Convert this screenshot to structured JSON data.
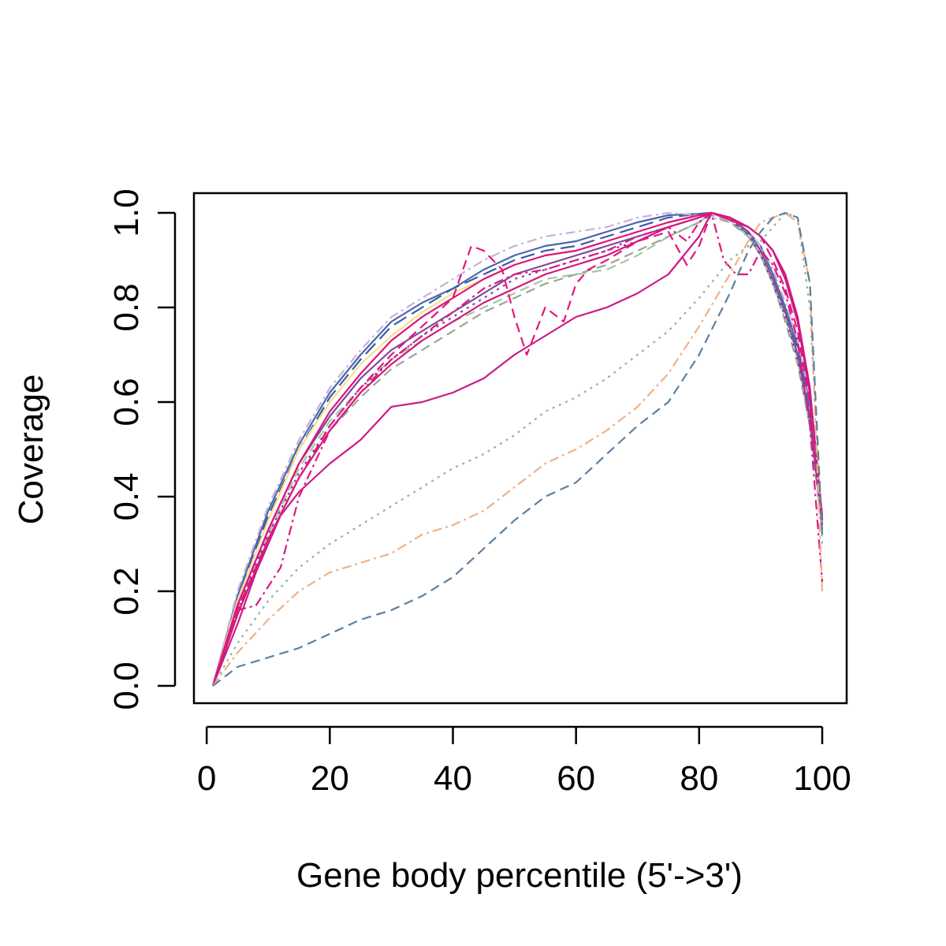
{
  "chart_data": {
    "type": "line",
    "title": "",
    "xlabel": "Gene body percentile (5'->3')",
    "ylabel": "Coverage",
    "xlim": [
      1,
      100
    ],
    "ylim": [
      0,
      1
    ],
    "xticks": [
      0,
      20,
      40,
      60,
      80,
      100
    ],
    "xtick_labels": [
      "0",
      "20",
      "40",
      "60",
      "80",
      "100"
    ],
    "yticks": [
      0,
      0.2,
      0.4,
      0.6,
      0.8,
      1
    ],
    "ytick_labels": [
      "0.0",
      "0.2",
      "0.4",
      "0.6",
      "0.8",
      "1.0"
    ],
    "grid": false,
    "legend": "none",
    "series": [
      {
        "color": "#4a66ac",
        "dash": "solid",
        "x": [
          1,
          5,
          10,
          15,
          20,
          25,
          30,
          35,
          40,
          45,
          50,
          55,
          60,
          65,
          70,
          75,
          80,
          82,
          85,
          88,
          90,
          92,
          94,
          96,
          98,
          100
        ],
        "y": [
          0,
          0.19,
          0.37,
          0.51,
          0.62,
          0.7,
          0.77,
          0.81,
          0.84,
          0.88,
          0.91,
          0.93,
          0.94,
          0.96,
          0.98,
          0.995,
          0.998,
          1.0,
          0.99,
          0.96,
          0.93,
          0.87,
          0.8,
          0.72,
          0.6,
          0.33
        ]
      },
      {
        "color": "#3b5ba5",
        "dash": "longdash",
        "x": [
          1,
          5,
          10,
          15,
          20,
          25,
          30,
          35,
          40,
          45,
          50,
          55,
          60,
          65,
          70,
          75,
          80,
          82,
          85,
          88,
          90,
          92,
          94,
          96,
          98,
          100
        ],
        "y": [
          0,
          0.18,
          0.36,
          0.5,
          0.61,
          0.69,
          0.76,
          0.8,
          0.84,
          0.87,
          0.9,
          0.92,
          0.93,
          0.95,
          0.97,
          0.99,
          0.998,
          1.0,
          0.985,
          0.955,
          0.92,
          0.86,
          0.79,
          0.71,
          0.58,
          0.35
        ]
      },
      {
        "color": "#c9b0d8",
        "dash": "dashdot",
        "x": [
          1,
          5,
          10,
          15,
          20,
          25,
          30,
          35,
          40,
          45,
          50,
          55,
          60,
          65,
          70,
          75,
          80,
          82,
          85,
          88,
          90,
          92,
          94,
          96,
          98,
          100
        ],
        "y": [
          0,
          0.2,
          0.38,
          0.52,
          0.63,
          0.71,
          0.78,
          0.82,
          0.86,
          0.9,
          0.93,
          0.95,
          0.96,
          0.97,
          0.99,
          1.0,
          0.995,
          0.99,
          0.98,
          0.96,
          0.93,
          0.88,
          0.81,
          0.73,
          0.61,
          0.36
        ]
      },
      {
        "color": "#f6e08c",
        "dash": "solid",
        "x": [
          1,
          5,
          10,
          15,
          20,
          25,
          30,
          35,
          40,
          45,
          50,
          55,
          60,
          65,
          70,
          75,
          80,
          82,
          85,
          88,
          90,
          92,
          94,
          96,
          98,
          100
        ],
        "y": [
          0,
          0.18,
          0.35,
          0.5,
          0.6,
          0.68,
          0.74,
          0.79,
          0.83,
          0.86,
          0.89,
          0.91,
          0.92,
          0.94,
          0.96,
          0.98,
          0.995,
          1.0,
          0.99,
          0.96,
          0.92,
          0.86,
          0.79,
          0.7,
          0.57,
          0.34
        ]
      },
      {
        "color": "#a3c99a",
        "dash": "dashed",
        "x": [
          1,
          5,
          10,
          15,
          20,
          25,
          30,
          35,
          40,
          45,
          50,
          55,
          60,
          65,
          70,
          75,
          80,
          82,
          85,
          88,
          90,
          92,
          94,
          96,
          98,
          100
        ],
        "y": [
          0,
          0.16,
          0.32,
          0.46,
          0.56,
          0.63,
          0.69,
          0.73,
          0.77,
          0.8,
          0.83,
          0.86,
          0.87,
          0.88,
          0.91,
          0.95,
          0.98,
          1.0,
          0.985,
          0.95,
          0.91,
          0.85,
          0.78,
          0.69,
          0.55,
          0.34
        ]
      },
      {
        "color": "#9aa39d",
        "dash": "dashed",
        "x": [
          1,
          5,
          10,
          15,
          20,
          25,
          30,
          35,
          40,
          45,
          50,
          55,
          60,
          65,
          70,
          75,
          80,
          82,
          85,
          88,
          90,
          92,
          94,
          96,
          98,
          100
        ],
        "y": [
          0,
          0.15,
          0.31,
          0.44,
          0.54,
          0.61,
          0.67,
          0.71,
          0.75,
          0.79,
          0.82,
          0.85,
          0.87,
          0.89,
          0.92,
          0.95,
          0.98,
          0.995,
          0.98,
          0.95,
          0.91,
          0.85,
          0.77,
          0.68,
          0.55,
          0.33
        ]
      },
      {
        "color": "#7a4a9c",
        "dash": "solid",
        "x": [
          1,
          5,
          10,
          15,
          20,
          25,
          30,
          35,
          40,
          45,
          50,
          55,
          60,
          65,
          70,
          75,
          80,
          82,
          85,
          88,
          90,
          92,
          94,
          96,
          98,
          100
        ],
        "y": [
          0,
          0.17,
          0.33,
          0.47,
          0.57,
          0.65,
          0.71,
          0.75,
          0.79,
          0.83,
          0.87,
          0.89,
          0.91,
          0.93,
          0.95,
          0.97,
          0.99,
          1.0,
          0.99,
          0.96,
          0.92,
          0.86,
          0.79,
          0.7,
          0.57,
          0.34
        ]
      },
      {
        "color": "#8a3aa0",
        "dash": "dotted",
        "x": [
          1,
          5,
          10,
          15,
          20,
          25,
          30,
          35,
          40,
          45,
          50,
          55,
          60,
          65,
          70,
          75,
          80,
          82,
          85,
          88,
          90,
          92,
          94,
          96,
          98,
          100
        ],
        "y": [
          0,
          0.16,
          0.32,
          0.45,
          0.55,
          0.63,
          0.69,
          0.74,
          0.78,
          0.82,
          0.86,
          0.88,
          0.9,
          0.92,
          0.94,
          0.97,
          0.99,
          1.0,
          0.985,
          0.955,
          0.91,
          0.85,
          0.78,
          0.69,
          0.56,
          0.33
        ]
      },
      {
        "color": "#e0127a",
        "dash": "solid",
        "x": [
          1,
          5,
          10,
          15,
          20,
          25,
          30,
          35,
          40,
          45,
          50,
          55,
          60,
          65,
          70,
          75,
          80,
          82,
          85,
          88,
          90,
          92,
          94,
          96,
          98,
          100
        ],
        "y": [
          0,
          0.17,
          0.33,
          0.47,
          0.58,
          0.66,
          0.73,
          0.78,
          0.82,
          0.86,
          0.89,
          0.91,
          0.92,
          0.94,
          0.96,
          0.98,
          0.995,
          1.0,
          0.99,
          0.97,
          0.95,
          0.92,
          0.86,
          0.77,
          0.62,
          0.36
        ]
      },
      {
        "color": "#d4157f",
        "dash": "solid",
        "x": [
          1,
          5,
          10,
          15,
          20,
          25,
          30,
          35,
          40,
          45,
          50,
          55,
          60,
          65,
          70,
          75,
          80,
          82,
          85,
          88,
          90,
          92,
          94,
          96,
          98,
          100
        ],
        "y": [
          0,
          0.15,
          0.31,
          0.44,
          0.54,
          0.62,
          0.68,
          0.73,
          0.77,
          0.81,
          0.84,
          0.87,
          0.89,
          0.91,
          0.94,
          0.97,
          0.99,
          1.0,
          0.99,
          0.97,
          0.95,
          0.92,
          0.87,
          0.78,
          0.63,
          0.35
        ]
      },
      {
        "color": "#cc1a86",
        "dash": "solid",
        "x": [
          1,
          5,
          8,
          12,
          15,
          20,
          25,
          30,
          35,
          40,
          45,
          50,
          55,
          60,
          65,
          70,
          75,
          80,
          82,
          85,
          88,
          90,
          92,
          94,
          96,
          98,
          100
        ],
        "y": [
          0,
          0.13,
          0.24,
          0.36,
          0.41,
          0.47,
          0.52,
          0.59,
          0.6,
          0.62,
          0.65,
          0.7,
          0.74,
          0.78,
          0.8,
          0.83,
          0.87,
          0.95,
          1.0,
          0.985,
          0.97,
          0.95,
          0.92,
          0.86,
          0.77,
          0.62,
          0.35
        ]
      },
      {
        "color": "#e2167c",
        "dash": "dashed",
        "x": [
          1,
          5,
          10,
          15,
          20,
          25,
          30,
          35,
          40,
          43,
          45,
          48,
          50,
          52,
          55,
          58,
          60,
          62,
          65,
          70,
          75,
          78,
          80,
          82,
          85,
          88,
          90,
          92,
          94,
          96,
          98,
          100
        ],
        "y": [
          0,
          0.16,
          0.31,
          0.44,
          0.55,
          0.63,
          0.7,
          0.76,
          0.82,
          0.93,
          0.92,
          0.88,
          0.78,
          0.7,
          0.8,
          0.77,
          0.85,
          0.88,
          0.9,
          0.94,
          0.96,
          0.89,
          0.93,
          1.0,
          0.985,
          0.97,
          0.95,
          0.9,
          0.84,
          0.75,
          0.6,
          0.34
        ]
      },
      {
        "color": "#dc1a7e",
        "dash": "dashdot",
        "x": [
          1,
          3,
          5,
          8,
          12,
          15,
          20,
          25,
          30,
          35,
          40,
          45,
          50,
          55,
          60,
          65,
          70,
          75,
          78,
          80,
          82,
          84,
          86,
          88,
          90,
          92,
          94,
          96,
          98,
          100
        ],
        "y": [
          0,
          0.08,
          0.16,
          0.17,
          0.25,
          0.4,
          0.54,
          0.62,
          0.69,
          0.74,
          0.79,
          0.84,
          0.87,
          0.88,
          0.9,
          0.92,
          0.95,
          0.97,
          0.94,
          0.98,
          1.0,
          0.9,
          0.87,
          0.87,
          0.92,
          0.89,
          0.83,
          0.73,
          0.55,
          0.22
        ]
      },
      {
        "color": "#8fb59a",
        "dash": "dotted",
        "x": [
          1,
          5,
          10,
          15,
          20,
          25,
          30,
          35,
          40,
          45,
          50,
          55,
          60,
          65,
          70,
          75,
          80,
          85,
          88,
          90,
          92,
          94,
          96,
          98,
          100
        ],
        "y": [
          0,
          0.09,
          0.18,
          0.25,
          0.3,
          0.34,
          0.38,
          0.42,
          0.46,
          0.49,
          0.53,
          0.58,
          0.61,
          0.65,
          0.7,
          0.75,
          0.82,
          0.9,
          0.93,
          0.94,
          0.97,
          1.0,
          0.99,
          0.8,
          0.3
        ]
      },
      {
        "color": "#f0b088",
        "dash": "dashdot",
        "x": [
          1,
          5,
          10,
          15,
          20,
          25,
          30,
          35,
          40,
          45,
          50,
          55,
          60,
          65,
          70,
          75,
          80,
          85,
          88,
          90,
          92,
          94,
          96,
          98,
          100
        ],
        "y": [
          0,
          0.07,
          0.14,
          0.2,
          0.24,
          0.26,
          0.28,
          0.32,
          0.34,
          0.37,
          0.42,
          0.47,
          0.5,
          0.54,
          0.59,
          0.66,
          0.76,
          0.87,
          0.94,
          0.98,
          0.99,
          1.0,
          0.98,
          0.85,
          0.2
        ]
      },
      {
        "color": "#5e7f9e",
        "dash": "dashed",
        "x": [
          1,
          5,
          10,
          15,
          20,
          25,
          30,
          35,
          40,
          45,
          50,
          55,
          60,
          65,
          70,
          75,
          80,
          85,
          88,
          90,
          92,
          94,
          96,
          98,
          100
        ],
        "y": [
          0,
          0.04,
          0.06,
          0.08,
          0.11,
          0.14,
          0.16,
          0.19,
          0.23,
          0.29,
          0.35,
          0.4,
          0.43,
          0.49,
          0.55,
          0.6,
          0.7,
          0.83,
          0.92,
          0.96,
          0.99,
          1.0,
          0.99,
          0.85,
          0.32
        ]
      }
    ]
  }
}
